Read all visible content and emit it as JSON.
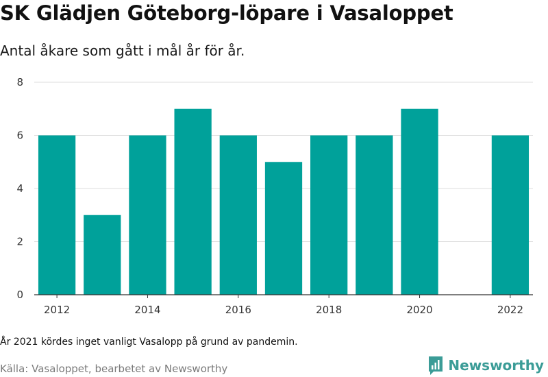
{
  "header": {
    "title": "SK Glädjen Göteborg-löpare i Vasaloppet",
    "subtitle": "Antal åkare som gått i mål år för år."
  },
  "footer": {
    "note": "År 2021 kördes inget vanligt Vasalopp på grund av pandemin.",
    "source": "Källa: Vasaloppet, bearbetet av Newsworthy",
    "brand": "Newsworthy"
  },
  "colors": {
    "bar": "#00a19a",
    "grid": "#dddddd",
    "axis": "#333333",
    "brand": "#3b9c97"
  },
  "icons": {
    "brand_logo": "bar-chart-logo-icon"
  },
  "chart_data": {
    "type": "bar",
    "x": [
      2012,
      2013,
      2014,
      2015,
      2016,
      2017,
      2018,
      2019,
      2020,
      2022
    ],
    "values": [
      6,
      3,
      6,
      7,
      6,
      5,
      6,
      6,
      7,
      6
    ],
    "xlim": [
      2011.5,
      2022.5
    ],
    "ylim": [
      0,
      8
    ],
    "yticks": [
      0,
      2,
      4,
      6,
      8
    ],
    "xticks": [
      2012,
      2014,
      2016,
      2018,
      2020,
      2022
    ],
    "grid": true,
    "title": "SK Glädjen Göteborg-löpare i Vasaloppet",
    "subtitle": "Antal åkare som gått i mål år för år."
  }
}
